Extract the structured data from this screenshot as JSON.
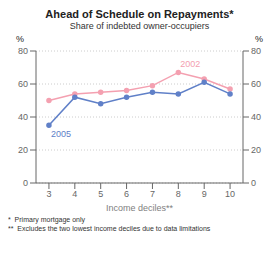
{
  "chart_data": {
    "type": "line",
    "title": "Ahead of Schedule on Repayments*",
    "subtitle": "Share of indebted owner-occupiers",
    "x_label": "Income deciles**",
    "y_label": "%",
    "y2_label": "%",
    "annotations": [
      "*  Primary mortgage only",
      "**  Excludes the two lowest income deciles due to data limitations"
    ],
    "x": [
      3,
      4,
      5,
      6,
      7,
      8,
      9,
      10
    ],
    "series": [
      {
        "name": "2002",
        "color": "#f4a0b0",
        "values": [
          50,
          54,
          55,
          56,
          59,
          67,
          63,
          57
        ],
        "marker": "circle",
        "line_style": "solid"
      },
      {
        "name": "2005",
        "color": "#6080c8",
        "values": [
          35,
          52,
          48,
          52,
          55,
          54,
          61,
          54
        ],
        "marker": "circle",
        "line_style": "solid"
      }
    ],
    "xlim": [
      2.5,
      10.5
    ],
    "xticks": [
      3,
      4,
      5,
      6,
      7,
      8,
      9,
      10
    ],
    "ylim": [
      0,
      80
    ],
    "yticks": [
      0,
      20,
      40,
      60,
      80
    ],
    "y2lim": [
      0,
      80
    ],
    "y2ticks": [
      0,
      20,
      40,
      60,
      80
    ],
    "grid": true
  }
}
